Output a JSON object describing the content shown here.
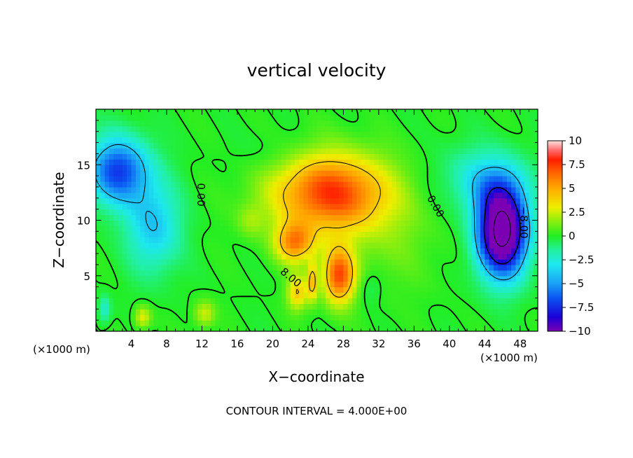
{
  "chart_data": {
    "type": "heatmap",
    "title": "vertical velocity",
    "xlabel": "X−coordinate",
    "ylabel": "Z−coordinate",
    "x_unit_label": "(×1000 m)",
    "footer": "CONTOUR INTERVAL = 4.000E+00",
    "xlim": [
      0,
      50
    ],
    "ylim": [
      0,
      20
    ],
    "x_ticks": [
      "4",
      "8",
      "12",
      "16",
      "20",
      "24",
      "28",
      "32",
      "36",
      "40",
      "44",
      "48"
    ],
    "y_ticks": [
      "5",
      "10",
      "15"
    ],
    "colorbar": {
      "range": [
        -10,
        10
      ],
      "ticks": [
        "10",
        "7.5",
        "5",
        "2.5",
        "0",
        "−2.5",
        "−5",
        "−7.5",
        "−10"
      ],
      "stops": [
        {
          "value": -10,
          "color": "#7b00b4"
        },
        {
          "value": -8.5,
          "color": "#1a00d6"
        },
        {
          "value": -6.5,
          "color": "#0b55f2"
        },
        {
          "value": -5,
          "color": "#1aa0f5"
        },
        {
          "value": -3,
          "color": "#1ee8ee"
        },
        {
          "value": -1.5,
          "color": "#22f0a0"
        },
        {
          "value": 0,
          "color": "#22ee22"
        },
        {
          "value": 1.5,
          "color": "#88ee10"
        },
        {
          "value": 3,
          "color": "#eeee00"
        },
        {
          "value": 5,
          "color": "#ffaa00"
        },
        {
          "value": 6.5,
          "color": "#ff6a00"
        },
        {
          "value": 8,
          "color": "#ff1f00"
        },
        {
          "value": 9,
          "color": "#ff6a6a"
        },
        {
          "value": 10,
          "color": "#ffe0e0"
        }
      ]
    },
    "contour_labels": [
      {
        "text": "0.00",
        "x": 11.5,
        "y": 12.3,
        "rotate": 90
      },
      {
        "text": "0.00",
        "x": 38.1,
        "y": 11.1,
        "rotate": 60
      },
      {
        "text": "8.00",
        "x": 21.8,
        "y": 4.6,
        "rotate": 40
      },
      {
        "text": "−8.00",
        "x": 48.0,
        "y": 9.8,
        "rotate": 90
      }
    ]
  }
}
